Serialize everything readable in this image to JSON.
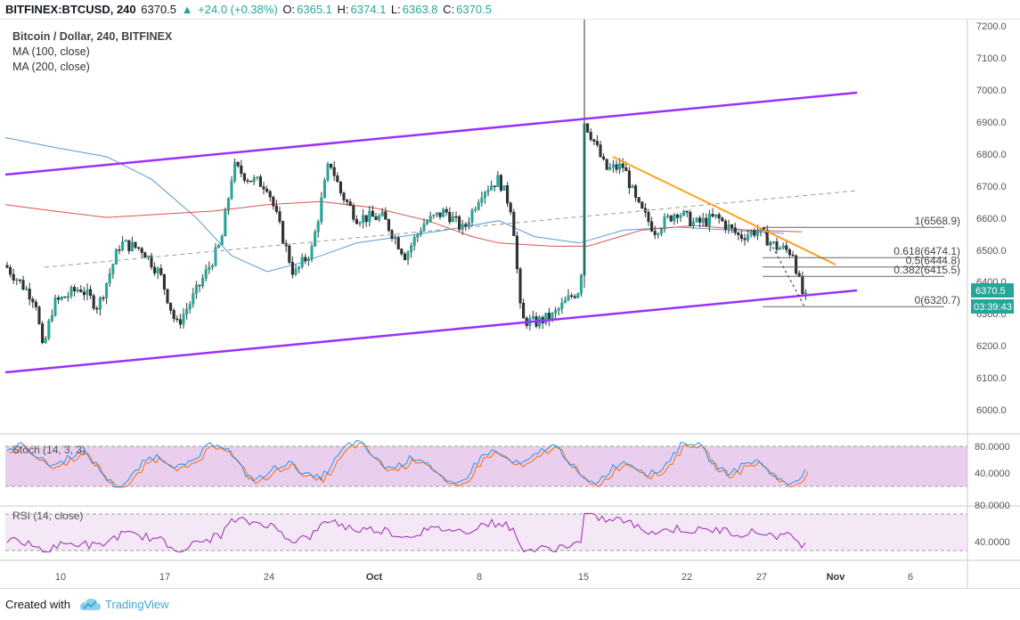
{
  "header": {
    "symbol": "BITFINEX:BTCUSD, 240",
    "last": "6370.5",
    "change": "+24.0 (+0.38%)",
    "o_label": "O:",
    "o_value": "6365.1",
    "h_label": "H:",
    "h_value": "6374.1",
    "l_label": "L:",
    "l_value": "6363.8",
    "c_label": "C:",
    "c_value": "6370.5",
    "up_color": "#26a69a"
  },
  "legend": {
    "title": "Bitcoin / Dollar, 240, BITFINEX",
    "ma100": "MA (100, close)",
    "ma200": "MA (200, close)"
  },
  "price_axis": {
    "ticks": [
      "7200.0",
      "7100.0",
      "7000.0",
      "6900.0",
      "6800.0",
      "6700.0",
      "6600.0",
      "6500.0",
      "6400.0",
      "6300.0",
      "6200.0",
      "6100.0",
      "6000.0"
    ],
    "last_price_label": "6370.5",
    "countdown_label": "03:39:43",
    "label_color": "#26a69a"
  },
  "time_axis": {
    "labels": [
      "10",
      "17",
      "24",
      "Oct",
      "8",
      "15",
      "22",
      "27",
      "Nov",
      "6"
    ]
  },
  "fib_levels": [
    {
      "label": "1(6568.9)",
      "price": 6568.9
    },
    {
      "label": "0.618(6474.1)",
      "price": 6474.1
    },
    {
      "label": "0.5(6444.8)",
      "price": 6444.8
    },
    {
      "label": "0.382(6415.5)",
      "price": 6415.5
    },
    {
      "label": "0(6320.7)",
      "price": 6320.7
    }
  ],
  "stoch": {
    "title": "Stoch (14, 3, 3)",
    "levels": [
      "80.0000",
      "40.0000"
    ],
    "k_color": "#2196f3",
    "d_color": "#ff6d00"
  },
  "rsi": {
    "title": "RSI (14, close)",
    "levels": [
      "80.0000",
      "40.0000"
    ],
    "line_color": "#9c27b0"
  },
  "drawing_colors": {
    "channel": "#9b30ff",
    "trendline": "#ff9f1a",
    "ma100": "#5b9bd5",
    "ma200": "#e05050",
    "midline": "#999999"
  },
  "footer": {
    "created_with": "Created with",
    "brand": "TradingView"
  }
}
